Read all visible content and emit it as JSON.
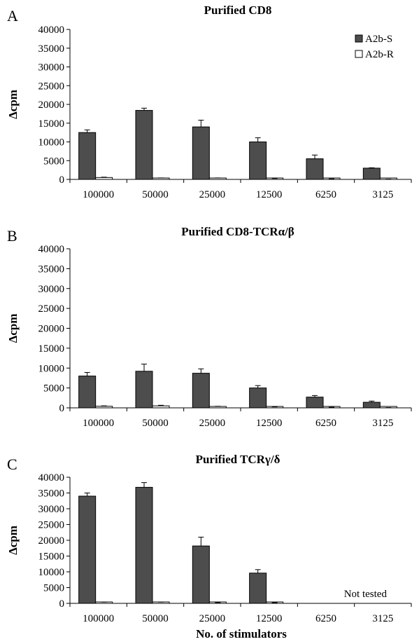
{
  "chart_data": [
    {
      "type": "bar",
      "panel_label": "A",
      "title": "Purified CD8",
      "ylabel": "Δcpm",
      "xlabel": "",
      "ylim": [
        0,
        40000
      ],
      "yticks": [
        0,
        5000,
        10000,
        15000,
        20000,
        25000,
        30000,
        35000,
        40000
      ],
      "categories": [
        "100000",
        "50000",
        "25000",
        "12500",
        "6250",
        "3125"
      ],
      "series": [
        {
          "name": "A2b-S",
          "color": "#4d4d4d",
          "values": [
            12500,
            18400,
            14000,
            10000,
            5500,
            3000
          ],
          "errors": [
            700,
            600,
            1800,
            1100,
            1000,
            100
          ]
        },
        {
          "name": "A2b-R",
          "color": "#ffffff",
          "values": [
            500,
            300,
            300,
            200,
            100,
            50
          ],
          "errors": [
            100,
            100,
            100,
            50,
            50,
            20
          ]
        }
      ],
      "legend": {
        "placement": "top-right",
        "entries": [
          "A2b-S",
          "A2b-R"
        ]
      },
      "annotations": []
    },
    {
      "type": "bar",
      "panel_label": "B",
      "title": "Purified CD8-TCRα/β",
      "ylabel": "Δcpm",
      "xlabel": "",
      "ylim": [
        0,
        40000
      ],
      "yticks": [
        0,
        5000,
        10000,
        15000,
        20000,
        25000,
        30000,
        35000,
        40000
      ],
      "categories": [
        "100000",
        "50000",
        "25000",
        "12500",
        "6250",
        "3125"
      ],
      "series": [
        {
          "name": "A2b-S",
          "color": "#4d4d4d",
          "values": [
            8000,
            9200,
            8700,
            5000,
            2700,
            1400
          ],
          "errors": [
            900,
            1800,
            1100,
            600,
            400,
            300
          ]
        },
        {
          "name": "A2b-R",
          "color": "#ffffff",
          "values": [
            400,
            500,
            300,
            200,
            100,
            50
          ],
          "errors": [
            100,
            150,
            100,
            50,
            50,
            20
          ]
        }
      ],
      "legend": null,
      "annotations": []
    },
    {
      "type": "bar",
      "panel_label": "C",
      "title": "Purified TCRγ/δ",
      "ylabel": "Δcpm",
      "xlabel": "No. of stimulators",
      "ylim": [
        0,
        40000
      ],
      "yticks": [
        0,
        5000,
        10000,
        15000,
        20000,
        25000,
        30000,
        35000,
        40000
      ],
      "categories": [
        "100000",
        "50000",
        "25000",
        "12500",
        "6250",
        "3125"
      ],
      "series": [
        {
          "name": "A2b-S",
          "color": "#4d4d4d",
          "values": [
            34000,
            36800,
            18200,
            9600,
            null,
            null
          ],
          "errors": [
            1000,
            1500,
            2800,
            1100,
            null,
            null
          ]
        },
        {
          "name": "A2b-R",
          "color": "#ffffff",
          "values": [
            300,
            300,
            200,
            150,
            null,
            null
          ],
          "errors": [
            100,
            100,
            50,
            50,
            null,
            null
          ]
        }
      ],
      "legend": null,
      "annotations": [
        {
          "text": "Not tested",
          "category": "3125"
        }
      ]
    }
  ]
}
